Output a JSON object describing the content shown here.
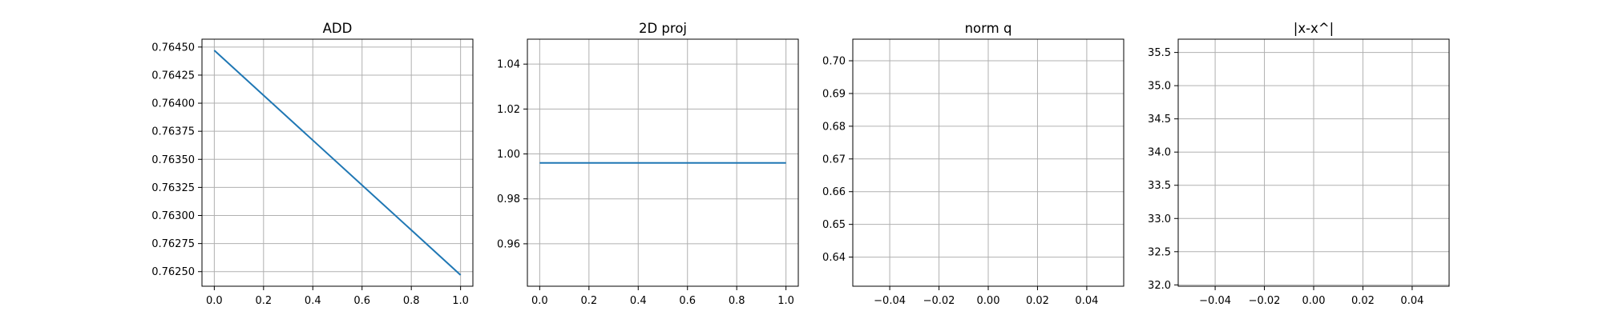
{
  "chart_data": [
    {
      "type": "line",
      "title": "ADD",
      "xlabel": "",
      "ylabel": "",
      "grid": true,
      "x": [
        0.0,
        1.0
      ],
      "series": [
        {
          "values": [
            0.76447,
            0.76247
          ],
          "color": "#1f77b4"
        }
      ],
      "xlim": [
        -0.05,
        1.05
      ],
      "ylim": [
        0.76237,
        0.76457
      ],
      "xticks": [
        0.0,
        0.2,
        0.4,
        0.6,
        0.8,
        1.0
      ],
      "xtick_labels": [
        "0.0",
        "0.2",
        "0.4",
        "0.6",
        "0.8",
        "1.0"
      ],
      "yticks": [
        0.7625,
        0.76275,
        0.763,
        0.76325,
        0.7635,
        0.76375,
        0.764,
        0.76425,
        0.7645
      ],
      "ytick_labels": [
        "0.76250",
        "0.76275",
        "0.76300",
        "0.76325",
        "0.76350",
        "0.76375",
        "0.76400",
        "0.76425",
        "0.76450"
      ]
    },
    {
      "type": "line",
      "title": "2D proj",
      "xlabel": "",
      "ylabel": "",
      "grid": true,
      "x": [
        0.0,
        1.0
      ],
      "series": [
        {
          "values": [
            0.996,
            0.996
          ],
          "color": "#1f77b4"
        }
      ],
      "xlim": [
        -0.05,
        1.05
      ],
      "ylim": [
        0.9411,
        1.0511
      ],
      "xticks": [
        0.0,
        0.2,
        0.4,
        0.6,
        0.8,
        1.0
      ],
      "xtick_labels": [
        "0.0",
        "0.2",
        "0.4",
        "0.6",
        "0.8",
        "1.0"
      ],
      "yticks": [
        0.96,
        0.98,
        1.0,
        1.02,
        1.04
      ],
      "ytick_labels": [
        "0.96",
        "0.98",
        "1.00",
        "1.02",
        "1.04"
      ]
    },
    {
      "type": "line",
      "title": "norm q",
      "xlabel": "",
      "ylabel": "",
      "grid": true,
      "x": [],
      "series": [],
      "xlim": [
        -0.055,
        0.055
      ],
      "ylim": [
        0.6311,
        0.7066
      ],
      "xticks": [
        -0.04,
        -0.02,
        0.0,
        0.02,
        0.04
      ],
      "xtick_labels": [
        "−0.04",
        "−0.02",
        "0.00",
        "0.02",
        "0.04"
      ],
      "yticks": [
        0.64,
        0.65,
        0.66,
        0.67,
        0.68,
        0.69,
        0.7
      ],
      "ytick_labels": [
        "0.64",
        "0.65",
        "0.66",
        "0.67",
        "0.68",
        "0.69",
        "0.70"
      ]
    },
    {
      "type": "line",
      "title": "|x-x^|",
      "xlabel": "",
      "ylabel": "",
      "grid": true,
      "x": [],
      "series": [],
      "xlim": [
        -0.055,
        0.055
      ],
      "ylim": [
        31.98,
        35.7
      ],
      "xticks": [
        -0.04,
        -0.02,
        0.0,
        0.02,
        0.04
      ],
      "xtick_labels": [
        "−0.04",
        "−0.02",
        "0.00",
        "0.02",
        "0.04"
      ],
      "yticks": [
        32.0,
        32.5,
        33.0,
        33.5,
        34.0,
        34.5,
        35.0,
        35.5
      ],
      "ytick_labels": [
        "32.0",
        "32.5",
        "33.0",
        "33.5",
        "34.0",
        "34.5",
        "35.0",
        "35.5"
      ]
    }
  ]
}
